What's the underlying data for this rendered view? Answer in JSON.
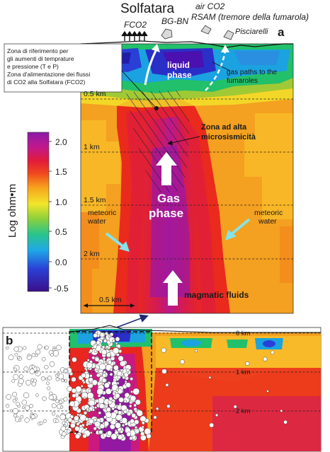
{
  "panel_a": {
    "panel_letter": "a",
    "title": "Solfatara",
    "site_labels": {
      "fco2": "FCO2",
      "bg_bn": "BG-BN",
      "air_co2": "air CO2",
      "rsam": "RSAM (tremore della fumarola)",
      "pisciarelli": "Pisciarelli"
    },
    "callout_lines": [
      "Zona di riferimento per",
      "gli aumenti di temprature",
      "e pressione (T e P)",
      "Zona d'alimentazione dei flussi",
      "di CO2 alla Solfatara (FCO2)"
    ],
    "liquid_phase": [
      "liquid",
      "phase"
    ],
    "gas_paths": [
      "gas paths to the",
      "fumaroles"
    ],
    "seismic_zone": [
      "Zona ad alta",
      "microsismicità"
    ],
    "gas_phase": [
      "Gas",
      "phase"
    ],
    "meteoric_left": [
      "meteoric",
      "water"
    ],
    "meteoric_right": [
      "meteoric",
      "water"
    ],
    "magmatic_fluids": "magmatic fluids",
    "depth_labels": [
      "0.5 km",
      "1 km",
      "1.5 km",
      "2 km"
    ],
    "scale_bar": "0.5 km"
  },
  "colorbar": {
    "axis_label": "Log ohm•m",
    "ticks": [
      "2.0",
      "1.5",
      "1.0",
      "0.5",
      "0.0",
      "-0.5"
    ]
  },
  "panel_b": {
    "panel_letter": "b",
    "depth_labels": [
      "0 km",
      "1 km",
      "2 km"
    ]
  }
}
